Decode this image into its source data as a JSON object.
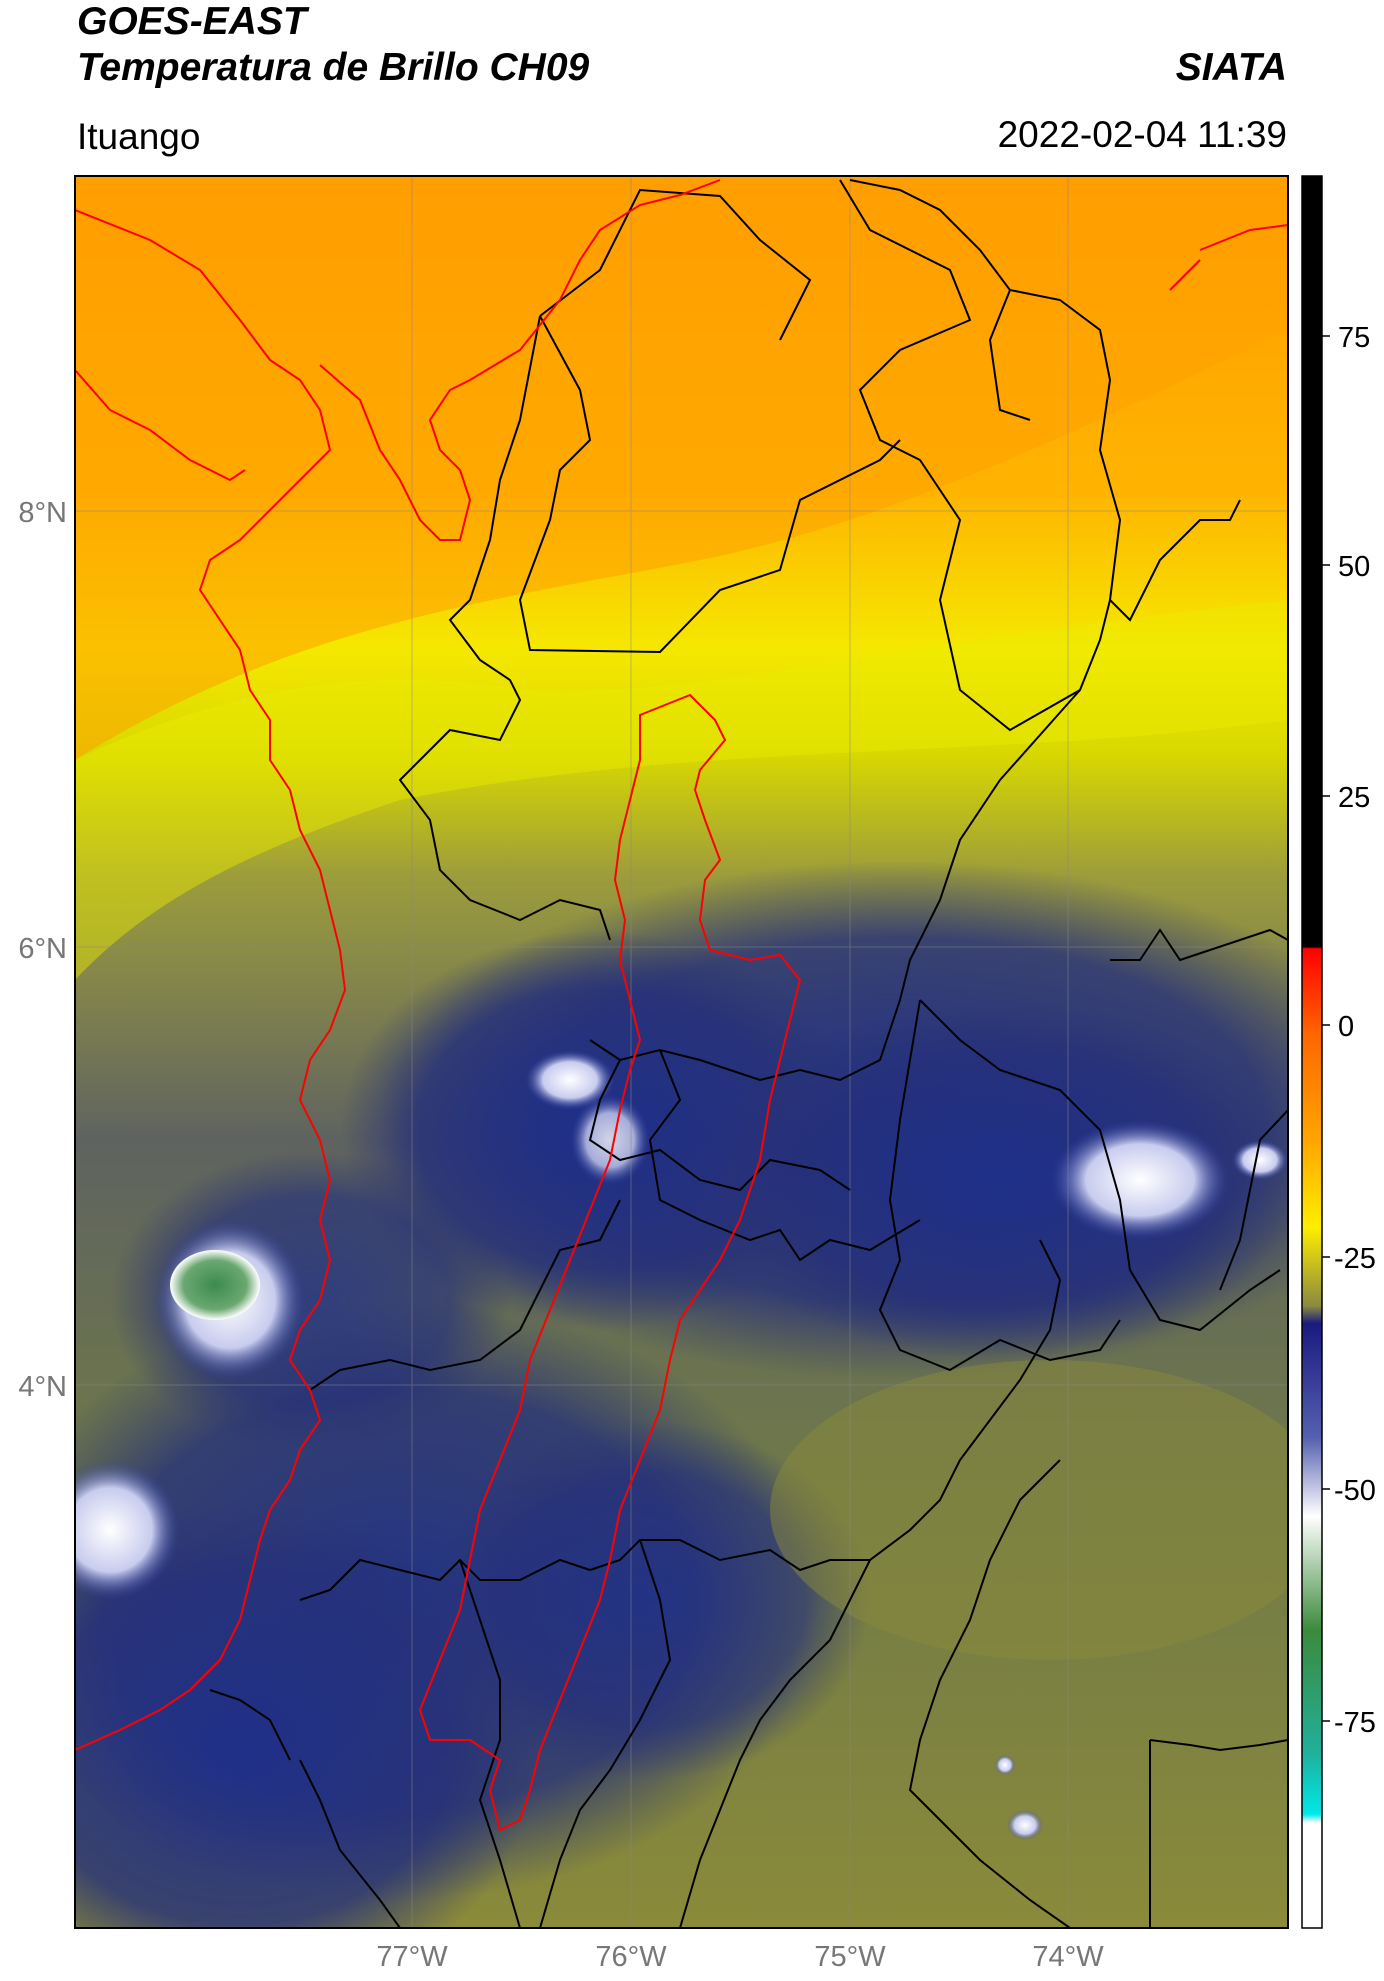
{
  "header": {
    "satellite": "GOES-EAST",
    "product": "Temperatura de Brillo CH09",
    "institution": "SIATA",
    "region": "Ituango",
    "datetime": "2022-02-04 11:39"
  },
  "map": {
    "lat_ticks": [
      "8°N",
      "6°N",
      "4°N"
    ],
    "lon_ticks": [
      "77°W",
      "76°W",
      "75°W",
      "74°W"
    ],
    "boundary_colors": {
      "coast": "#ff0000",
      "watershed": "#ff0000",
      "admin": "#000000"
    },
    "gridline_color": "#888888"
  },
  "colorbar": {
    "ticks": [
      "75",
      "50",
      "25",
      "0",
      "-25",
      "-50",
      "-75"
    ],
    "colors": [
      "#000000",
      "#ff0000",
      "#ff9900",
      "#ffff00",
      "#999933",
      "#333399",
      "#1a1a80",
      "#ffffff",
      "#2e8b2e",
      "#00e5e5"
    ]
  }
}
